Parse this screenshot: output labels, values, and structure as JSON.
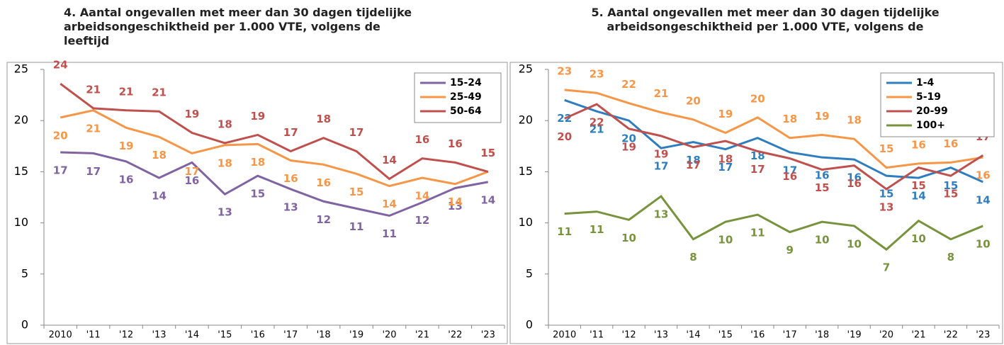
{
  "chart_data": [
    {
      "type": "line",
      "title": "4. Aantal ongevallen met meer dan 30 dagen tijdelijke arbeidsongeschiktheid per 1.000 VTE, volgens de leeftijd",
      "categories": [
        "2010",
        "'11",
        "'12",
        "'13",
        "'14",
        "'15",
        "'16",
        "'17",
        "'18",
        "'19",
        "'20",
        "'21",
        "'22",
        "'23"
      ],
      "ylim": [
        0,
        25
      ],
      "yticks": [
        0,
        5,
        10,
        15,
        20,
        25
      ],
      "legend": "upper right",
      "series": [
        {
          "name": "15-24",
          "color": "#8064a2",
          "values": [
            16.9,
            16.8,
            16.0,
            14.4,
            15.9,
            12.8,
            14.6,
            13.3,
            12.1,
            11.4,
            10.7,
            12.0,
            13.4,
            14.0
          ],
          "value_labels": [
            "17",
            "17",
            "16",
            "14",
            "16",
            "13",
            "15",
            "13",
            "12",
            "11",
            "11",
            "12",
            "13",
            "14"
          ]
        },
        {
          "name": "25-49",
          "color": "#f79646",
          "values": [
            20.3,
            21.0,
            19.3,
            18.4,
            16.8,
            17.6,
            17.7,
            16.1,
            15.7,
            14.8,
            13.6,
            14.4,
            13.8,
            15.0
          ],
          "value_labels": [
            "20",
            "21",
            "19",
            "18",
            "17",
            "18",
            "18",
            "16",
            "16",
            "15",
            "14",
            "14",
            "14",
            "15"
          ]
        },
        {
          "name": "50-64",
          "color": "#c0504d",
          "values": [
            23.6,
            21.2,
            21.0,
            20.9,
            18.8,
            17.8,
            18.6,
            17.0,
            18.3,
            17.0,
            14.3,
            16.3,
            15.9,
            15.0
          ],
          "value_labels": [
            "24",
            "21",
            "21",
            "21",
            "19",
            "18",
            "19",
            "17",
            "18",
            "17",
            "14",
            "16",
            "16",
            "15"
          ]
        }
      ]
    },
    {
      "type": "line",
      "title": "5. Aantal ongevallen met meer dan 30 dagen tijdelijke arbeidsongeschiktheid per 1.000 VTE, volgens de",
      "categories": [
        "2010",
        "'11",
        "'12",
        "'13",
        "'14",
        "'15",
        "'16",
        "'17",
        "'18",
        "'19",
        "'20",
        "'21",
        "'22",
        "'23"
      ],
      "ylim": [
        0,
        25
      ],
      "yticks": [
        0,
        5,
        10,
        15,
        20,
        25
      ],
      "legend": "upper right",
      "series": [
        {
          "name": "1-4",
          "color": "#2e7ebf",
          "values": [
            22.0,
            20.9,
            20.0,
            17.3,
            17.9,
            17.2,
            18.3,
            16.9,
            16.4,
            16.2,
            14.6,
            14.4,
            15.4,
            14.0
          ],
          "value_labels": [
            "22",
            "21",
            "20",
            "17",
            "18",
            "17",
            "18",
            "17",
            "16",
            "16",
            "15",
            "14",
            "15",
            "14"
          ]
        },
        {
          "name": "5-19",
          "color": "#f79646",
          "values": [
            23.0,
            22.7,
            21.7,
            20.8,
            20.1,
            18.8,
            20.3,
            18.3,
            18.6,
            18.2,
            15.4,
            15.8,
            15.9,
            16.4
          ],
          "value_labels": [
            "23",
            "23",
            "22",
            "21",
            "20",
            "19",
            "20",
            "18",
            "19",
            "18",
            "15",
            "16",
            "16",
            "16"
          ]
        },
        {
          "name": "20-99",
          "color": "#c0504d",
          "values": [
            20.2,
            21.6,
            19.2,
            18.5,
            17.4,
            18.0,
            17.0,
            16.3,
            15.2,
            15.6,
            13.3,
            15.4,
            14.6,
            16.6
          ],
          "value_labels": [
            "20",
            "22",
            "19",
            "19",
            "17",
            "18",
            "17",
            "16",
            "15",
            "16",
            "13",
            "15",
            "15",
            "17"
          ]
        },
        {
          "name": "100+",
          "color": "#77933c",
          "values": [
            10.9,
            11.1,
            10.3,
            12.6,
            8.4,
            10.1,
            10.8,
            9.1,
            10.1,
            9.7,
            7.4,
            10.2,
            8.4,
            9.7
          ],
          "value_labels": [
            "11",
            "11",
            "10",
            "13",
            "8",
            "10",
            "11",
            "9",
            "10",
            "10",
            "7",
            "10",
            "8",
            "10"
          ]
        }
      ]
    }
  ]
}
